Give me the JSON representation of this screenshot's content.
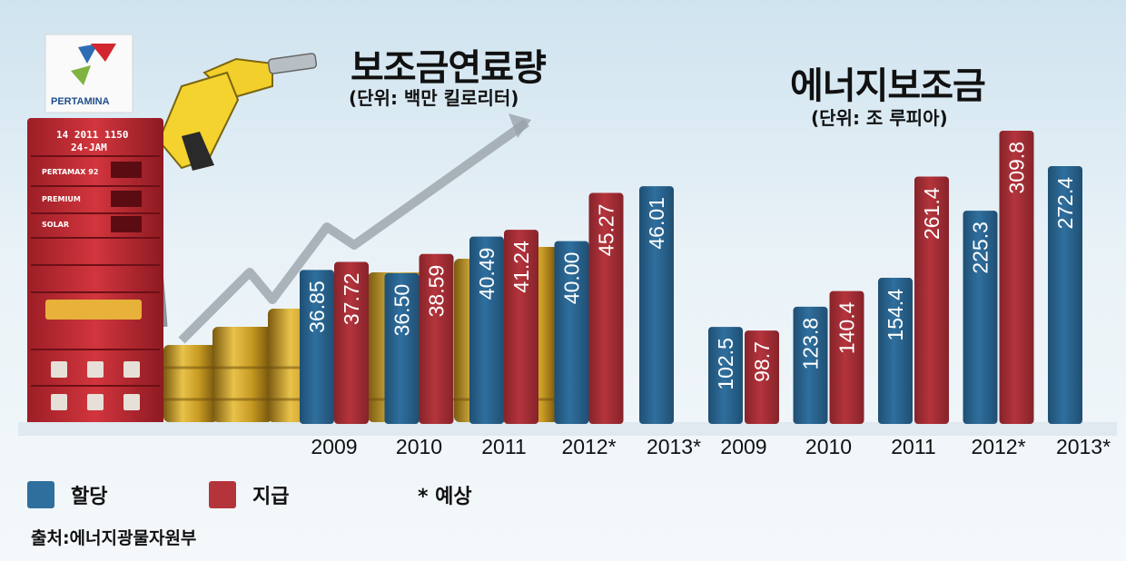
{
  "logo": {
    "brand": "PERTAMINA"
  },
  "pump": {
    "display_line1": "14 2011 1150",
    "display_line2": "24-JAM",
    "grades": [
      "PERTAMAX 92",
      "PREMIUM",
      "SOLAR"
    ]
  },
  "colors": {
    "allocation": "#2f6f9e",
    "realization": "#b5343c"
  },
  "chart_data": [
    {
      "type": "bar",
      "title": "보조금연료량",
      "subtitle": "(단위: 백만 킬로리터)",
      "categories": [
        "2009",
        "2010",
        "2011",
        "2012*",
        "2013*"
      ],
      "series": [
        {
          "name": "할당",
          "values": [
            36.85,
            36.5,
            40.49,
            40.0,
            46.01
          ]
        },
        {
          "name": "지급",
          "values": [
            37.72,
            38.59,
            41.24,
            45.27,
            null
          ]
        }
      ],
      "ylim": [
        20,
        48
      ],
      "grid": false,
      "legend": "bottom-left"
    },
    {
      "type": "bar",
      "title": "에너지보조금",
      "subtitle": "(단위: 조 루피아)",
      "categories": [
        "2009",
        "2010",
        "2011",
        "2012*",
        "2013*"
      ],
      "series": [
        {
          "name": "할당",
          "values": [
            102.5,
            123.8,
            154.4,
            225.3,
            272.4
          ]
        },
        {
          "name": "지급",
          "values": [
            98.7,
            140.4,
            261.4,
            309.8,
            null
          ]
        }
      ],
      "ylim": [
        0,
        330
      ],
      "grid": false,
      "legend": "bottom-left"
    }
  ],
  "legend": {
    "allocation": "할당",
    "realization": "지급",
    "forecast": "* 예상"
  },
  "source": "출처:에너지광물자원부"
}
